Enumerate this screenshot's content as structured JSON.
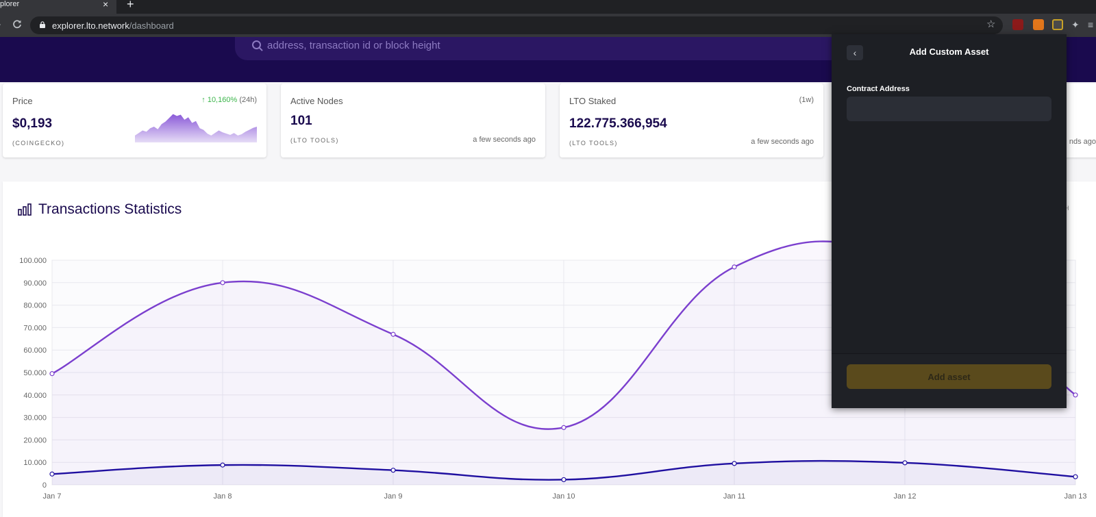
{
  "browser": {
    "tab_title": "plorer",
    "tab_close": "×",
    "new_tab": "+",
    "url_host": "explorer.lto.network",
    "url_path": "/dashboard"
  },
  "search": {
    "placeholder": "address, transaction id or block height"
  },
  "cards": {
    "price": {
      "label": "Price",
      "change": "↑ 10,160%",
      "change_period": "(24h)",
      "value": "$0,193",
      "source": "(COINGECKO)",
      "sparkline": [
        0.22,
        0.3,
        0.38,
        0.34,
        0.45,
        0.5,
        0.42,
        0.58,
        0.66,
        0.78,
        0.9,
        0.84,
        0.88,
        0.72,
        0.8,
        0.62,
        0.68,
        0.45,
        0.4,
        0.28,
        0.22,
        0.3,
        0.38,
        0.32,
        0.28,
        0.24,
        0.3,
        0.22,
        0.26,
        0.34,
        0.4,
        0.46,
        0.5
      ]
    },
    "nodes": {
      "label": "Active Nodes",
      "value": "101",
      "source": "(LTO TOOLS)",
      "time": "a few seconds ago"
    },
    "staked": {
      "label": "LTO Staked",
      "period": "(1w)",
      "value": "122.775.366,954",
      "source": "(LTO TOOLS)",
      "time": "a few seconds ago"
    },
    "fourth": {
      "time_partial": "nds ago"
    }
  },
  "stats": {
    "title": "Transactions Statistics",
    "right_partial": "H"
  },
  "popup": {
    "back": "‹",
    "title": "Add Custom Asset",
    "field_label": "Contract Address",
    "field_value": "",
    "button_label": "Add asset"
  },
  "colors": {
    "brand": "#1a0a4e",
    "series_total": "#7b3fce",
    "series_second": "#1f0fa0",
    "button": "#5a4a1c"
  },
  "chart_data": {
    "type": "line",
    "x": [
      "Jan 7",
      "Jan 8",
      "Jan 9",
      "Jan 10",
      "Jan 11",
      "Jan 12",
      "Jan 13"
    ],
    "ylim": [
      0,
      100000
    ],
    "yticks": [
      0,
      10000,
      20000,
      30000,
      40000,
      50000,
      60000,
      70000,
      80000,
      90000,
      100000
    ],
    "ytick_labels": [
      "0",
      "10.000",
      "20.000",
      "30.000",
      "40.000",
      "50.000",
      "60.000",
      "70.000",
      "80.000",
      "90.000",
      "100.000"
    ],
    "grid": true,
    "series": [
      {
        "color": "#7b3fce",
        "values": [
          49500,
          90000,
          67000,
          25500,
          97000,
          100000,
          40000
        ]
      },
      {
        "color": "#1f0fa0",
        "values": [
          4800,
          8800,
          6500,
          2300,
          9500,
          9800,
          3600
        ]
      }
    ]
  }
}
